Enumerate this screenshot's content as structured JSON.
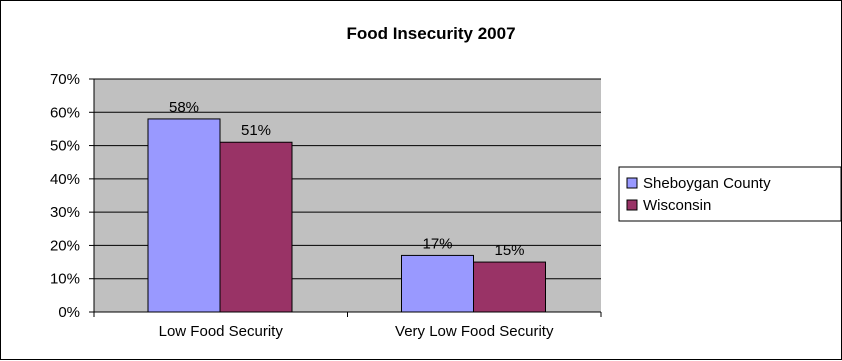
{
  "chart_data": {
    "type": "bar",
    "title": "Food Insecurity 2007",
    "xlabel": "",
    "ylabel": "",
    "categories": [
      "Low Food Security",
      "Very Low Food Security"
    ],
    "series": [
      {
        "name": "Sheboygan County",
        "values": [
          58,
          17
        ],
        "labels": [
          "58%",
          "17%"
        ],
        "color": "#9999ff"
      },
      {
        "name": "Wisconsin",
        "values": [
          51,
          15
        ],
        "labels": [
          "51%",
          "15%"
        ],
        "color": "#993366"
      }
    ],
    "ylim": [
      0,
      70
    ],
    "yticks": [
      0,
      10,
      20,
      30,
      40,
      50,
      60,
      70
    ],
    "ytick_labels": [
      "0%",
      "10%",
      "20%",
      "30%",
      "40%",
      "50%",
      "60%",
      "70%"
    ],
    "plot_background": "#c0c0c0",
    "grid": true,
    "legend_position": "right"
  }
}
